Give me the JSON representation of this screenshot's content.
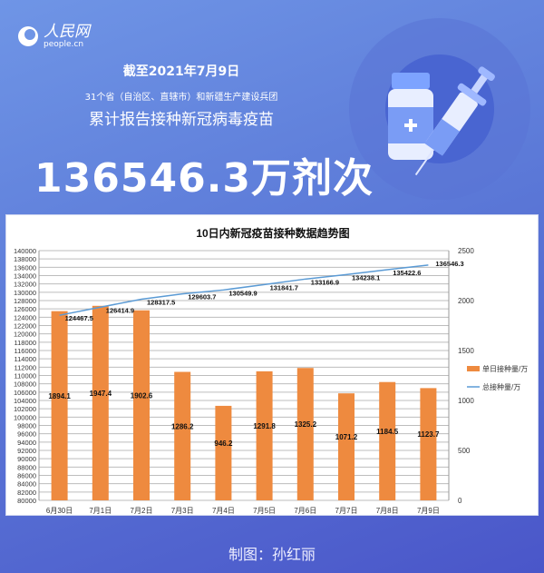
{
  "logo": {
    "name": "人民网",
    "url": "people.cn"
  },
  "header": {
    "date": "截至2021年7月9日",
    "subtitle1": "31个省（自治区、直辖市）和新疆生产建设兵团",
    "subtitle2": "累计报告接种新冠病毒疫苗",
    "total": "136546.3万剂次"
  },
  "credit": "制图：孙红丽",
  "colors": {
    "bar": "#ee8a3f",
    "line": "#5b9bd5",
    "background": "#5c7ad8"
  },
  "chart_data": {
    "type": "bar+line",
    "title": "10日内新冠疫苗接种数据趋势图",
    "categories": [
      "6月30日",
      "7月1日",
      "7月2日",
      "7月3日",
      "7月4日",
      "7月5日",
      "7月6日",
      "7月7日",
      "7月8日",
      "7月9日"
    ],
    "series": [
      {
        "name": "单日接种量/万",
        "type": "bar",
        "axis": "right",
        "values": [
          1894.1,
          1947.4,
          1902.6,
          1286.2,
          946.2,
          1291.8,
          1325.2,
          1071.2,
          1184.5,
          1123.7
        ],
        "labels": [
          "1894.1",
          "1947.4",
          "1902.6",
          "1286.2",
          "946.2",
          "1291.8",
          "1325.2",
          "1071.2",
          "1184.5",
          "1123.7"
        ]
      },
      {
        "name": "总接种量/万",
        "type": "line",
        "axis": "left",
        "values": [
          124467.5,
          126414.9,
          128317.5,
          129603.7,
          130549.9,
          131841.7,
          133166.9,
          134238.1,
          135422.6,
          136546.3
        ],
        "labels": [
          "124467.5",
          "126414.9",
          "128317.5",
          "129603.7",
          "130549.9",
          "131841.7",
          "133166.9",
          "134238.1",
          "135422.6",
          "136546.3"
        ]
      }
    ],
    "left_axis": {
      "range": [
        80000,
        140000
      ],
      "step": 2000
    },
    "right_axis": {
      "range": [
        0,
        2500
      ],
      "step": 500
    },
    "grid": true,
    "legend": "right"
  }
}
